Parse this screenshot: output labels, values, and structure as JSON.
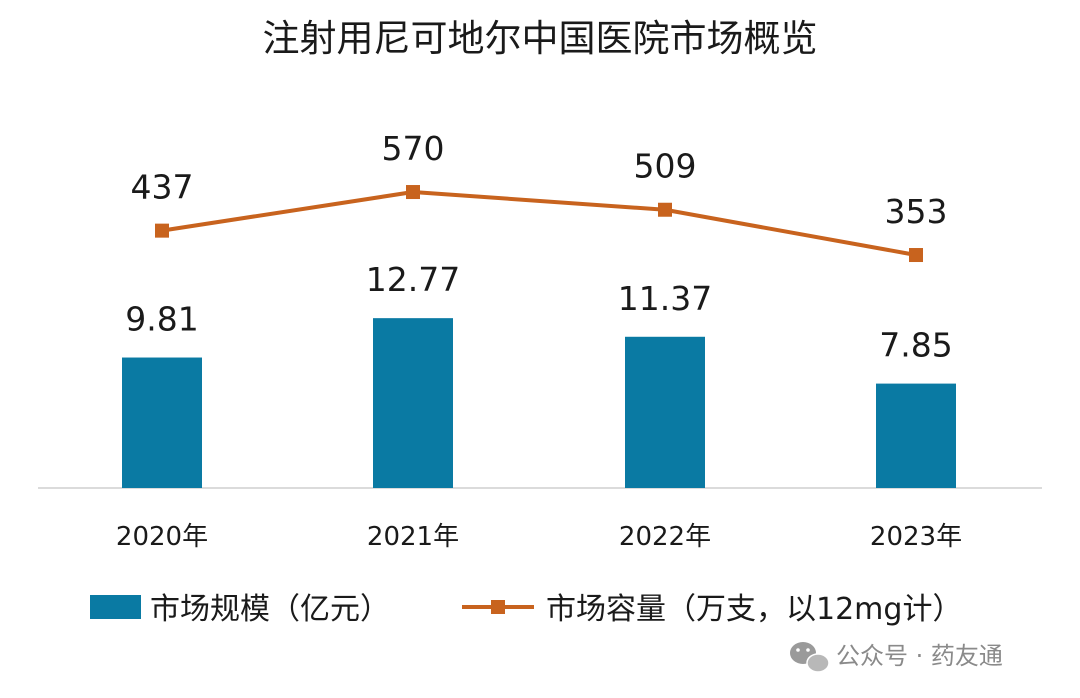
{
  "chart_data": {
    "type": "bar",
    "title": "注射用尼可地尔中国医院市场概览",
    "categories": [
      "2020年",
      "2021年",
      "2022年",
      "2023年"
    ],
    "series": [
      {
        "name": "市场规模（亿元）",
        "type": "bar",
        "values": [
          9.81,
          12.77,
          11.37,
          7.85
        ],
        "labels": [
          "9.81",
          "12.77",
          "11.37",
          "7.85"
        ],
        "color": "#0a7aa3"
      },
      {
        "name": "市场容量（万支，以12mg计）",
        "type": "line",
        "values": [
          437,
          570,
          509,
          353
        ],
        "labels": [
          "437",
          "570",
          "509",
          "353"
        ],
        "color": "#c8631e"
      }
    ],
    "legend_position": "bottom",
    "grid": false
  },
  "watermark": {
    "text": "公众号 · 药友通",
    "icon": "wechat-icon"
  }
}
